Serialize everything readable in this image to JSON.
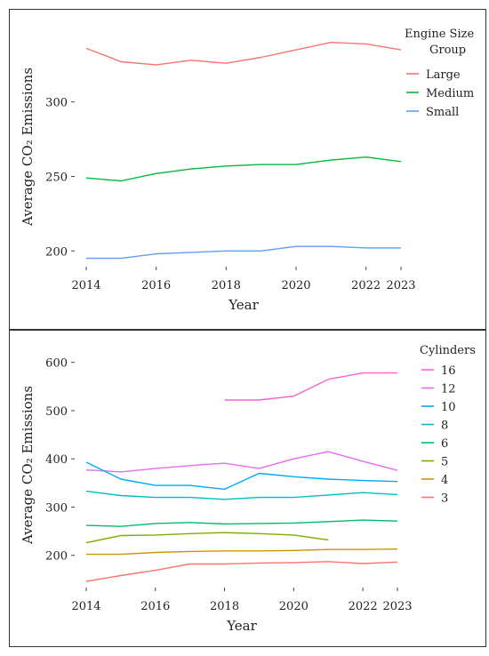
{
  "chart_data": [
    {
      "type": "line",
      "xlabel": "Year",
      "ylabel": "Average CO₂ Emissions",
      "xlim": [
        2014,
        2023
      ],
      "ylim": [
        193,
        347
      ],
      "x_ticks": [
        2014,
        2016,
        2018,
        2020,
        2022,
        2023
      ],
      "y_ticks": [
        200,
        250,
        300
      ],
      "legend_title": "Engine Size Group",
      "legend_position": "top-right",
      "grid": false,
      "x": [
        2014,
        2015,
        2016,
        2017,
        2018,
        2019,
        2020,
        2021,
        2022,
        2023
      ],
      "series": [
        {
          "name": "Large",
          "color": "#f8766d",
          "values": [
            336,
            327,
            325,
            328,
            326,
            330,
            335,
            340,
            339,
            335
          ]
        },
        {
          "name": "Medium",
          "color": "#00ba38",
          "values": [
            249,
            247,
            252,
            255,
            257,
            258,
            258,
            261,
            263,
            260
          ]
        },
        {
          "name": "Small",
          "color": "#619cff",
          "values": [
            195,
            195,
            198,
            199,
            200,
            200,
            203,
            203,
            202,
            202
          ]
        }
      ]
    },
    {
      "type": "line",
      "xlabel": "Year",
      "ylabel": "Average CO₂ Emissions",
      "xlim": [
        2014,
        2023
      ],
      "ylim": [
        135,
        640
      ],
      "x_ticks": [
        2014,
        2016,
        2018,
        2020,
        2022,
        2023
      ],
      "y_ticks": [
        200,
        300,
        400,
        500,
        600
      ],
      "legend_title": "Cylinders",
      "legend_position": "top-right",
      "grid": false,
      "x": [
        2014,
        2015,
        2016,
        2017,
        2018,
        2019,
        2020,
        2021,
        2022,
        2023
      ],
      "series": [
        {
          "name": "16",
          "color": "#ff61cc",
          "values": [
            null,
            null,
            null,
            null,
            522,
            522,
            530,
            565,
            578,
            578
          ]
        },
        {
          "name": "12",
          "color": "#e76bf3",
          "values": [
            377,
            373,
            380,
            386,
            391,
            380,
            400,
            415,
            395,
            376
          ]
        },
        {
          "name": "10",
          "color": "#00a9ff",
          "values": [
            393,
            358,
            345,
            345,
            337,
            370,
            363,
            358,
            355,
            353
          ]
        },
        {
          "name": "8",
          "color": "#00bfc4",
          "values": [
            333,
            324,
            320,
            320,
            316,
            320,
            320,
            325,
            330,
            326
          ]
        },
        {
          "name": "6",
          "color": "#00be67",
          "values": [
            262,
            260,
            266,
            268,
            265,
            266,
            267,
            270,
            273,
            271
          ]
        },
        {
          "name": "5",
          "color": "#7cae00",
          "values": [
            226,
            241,
            242,
            245,
            247,
            245,
            242,
            232,
            null,
            null
          ]
        },
        {
          "name": "4",
          "color": "#cd9600",
          "values": [
            202,
            202,
            206,
            208,
            209,
            209,
            210,
            212,
            212,
            213
          ]
        },
        {
          "name": "3",
          "color": "#f8766d",
          "values": [
            146,
            158,
            169,
            182,
            182,
            184,
            185,
            187,
            183,
            186
          ]
        }
      ]
    }
  ]
}
